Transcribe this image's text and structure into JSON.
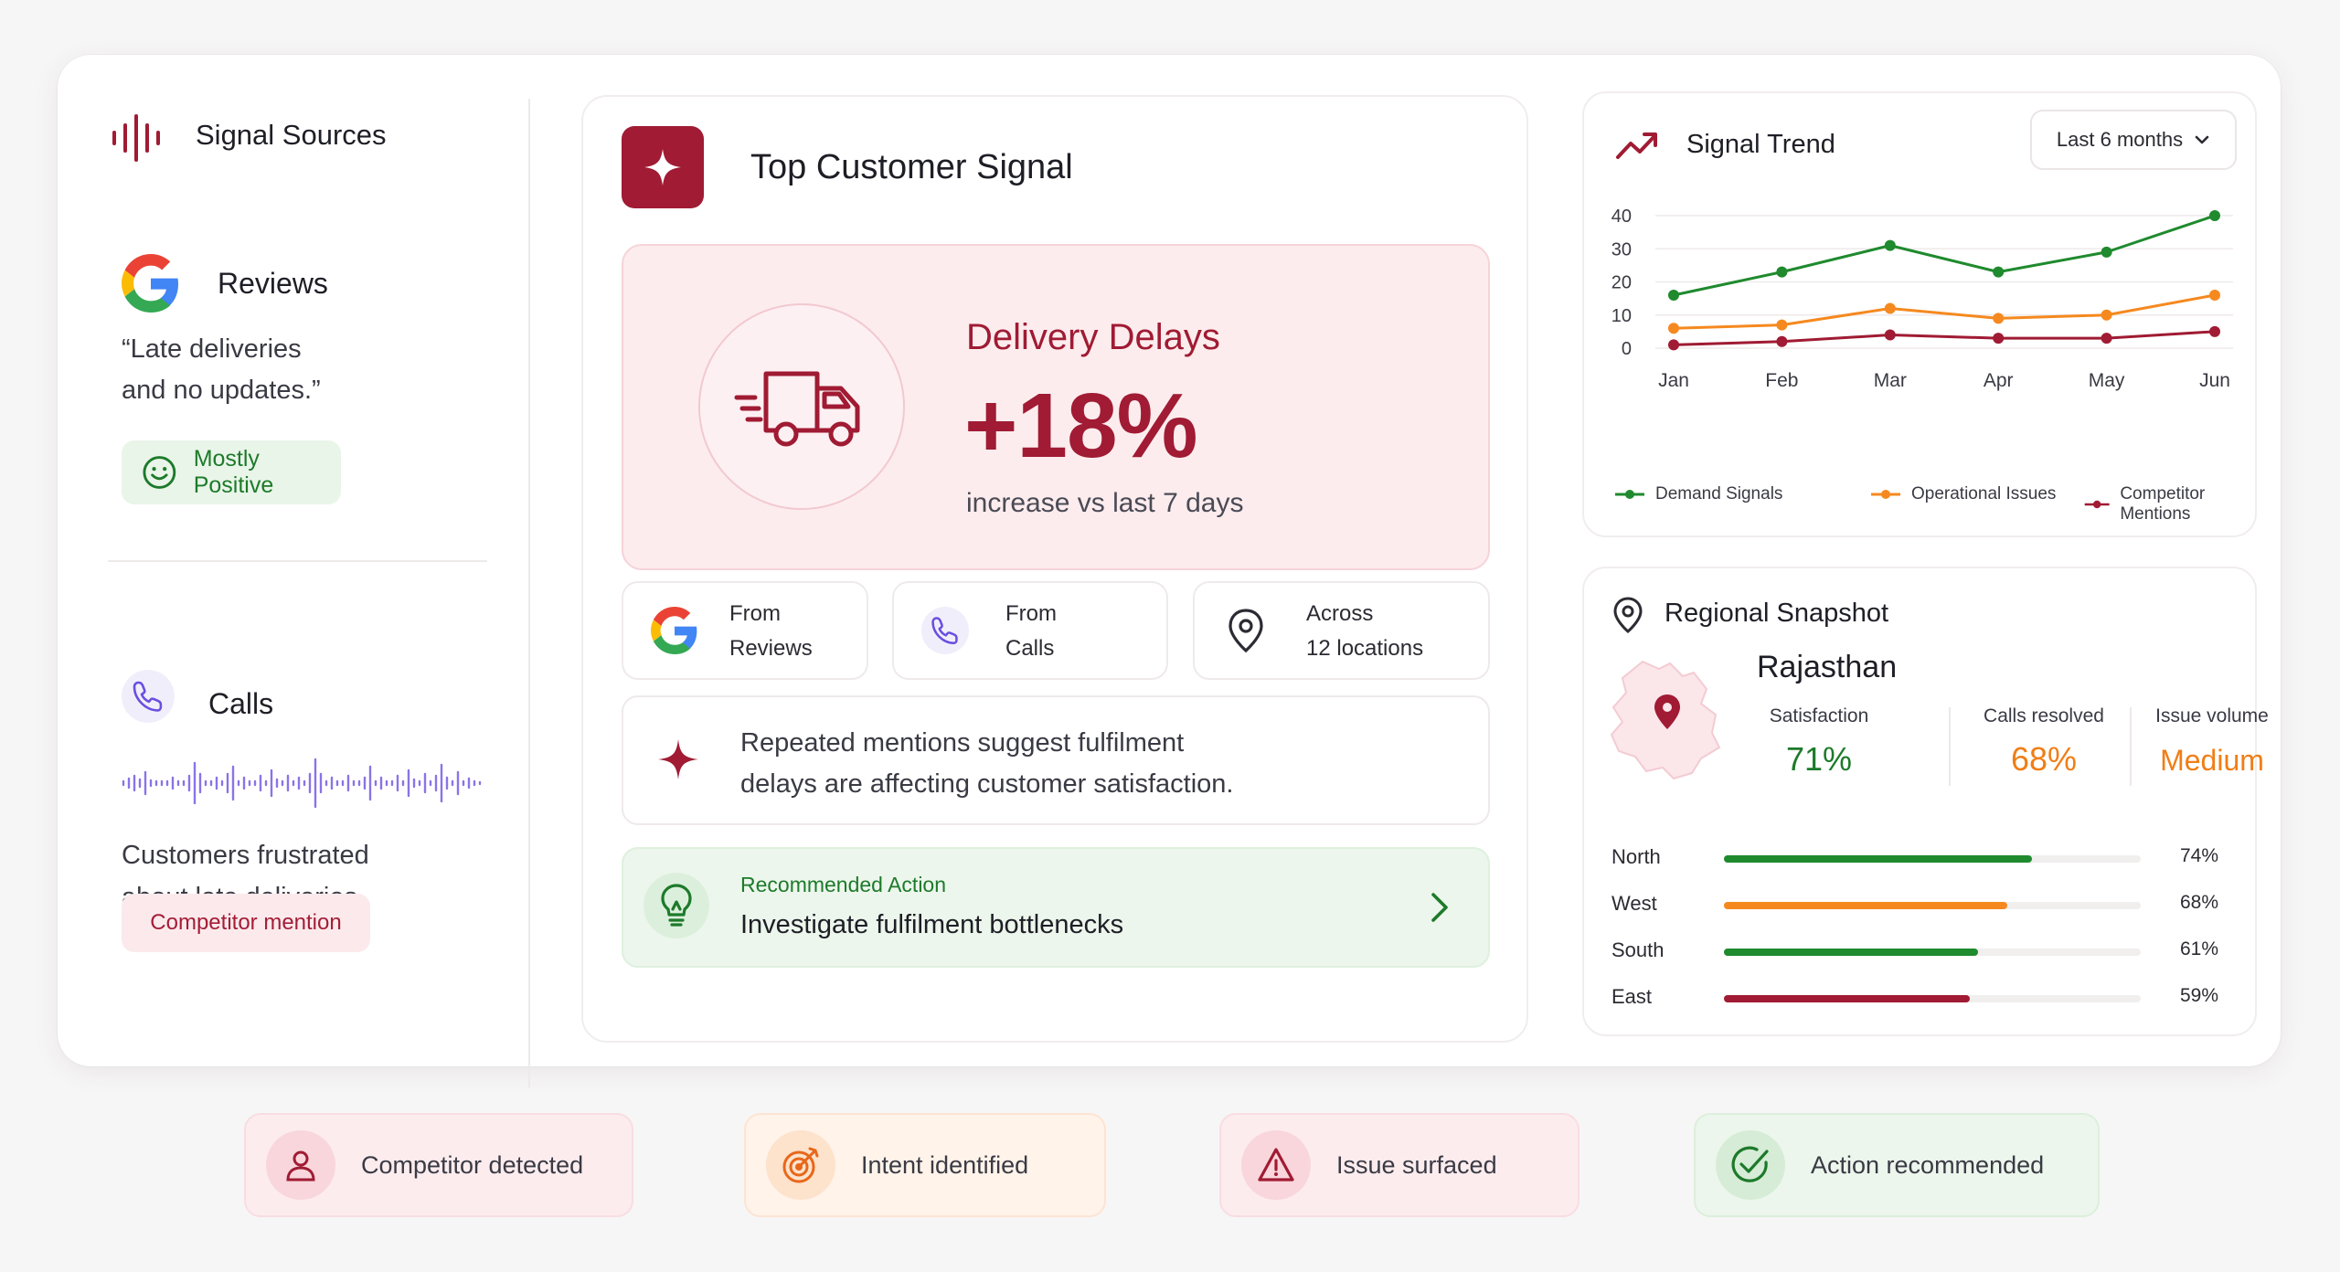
{
  "sources": {
    "title": "Signal Sources",
    "reviews": {
      "title": "Reviews",
      "quote_line1": "“Late deliveries",
      "quote_line2": "and no updates.”",
      "sentiment": "Mostly Positive"
    },
    "calls": {
      "title": "Calls",
      "summary_line1": "Customers frustrated",
      "summary_line2": "about late deliveries.",
      "tag": "Competitor mention"
    }
  },
  "top_signal": {
    "title": "Top Customer Signal",
    "headline": "Delivery Delays",
    "change": "+18%",
    "change_sub": "increase vs last 7 days",
    "sources": [
      {
        "line1": "From",
        "line2": "Reviews",
        "icon": "google-icon"
      },
      {
        "line1": "From",
        "line2": "Calls",
        "icon": "phone-icon"
      },
      {
        "line1": "Across",
        "line2": "12 locations",
        "icon": "location-pin-icon"
      }
    ],
    "insight_line1": "Repeated mentions suggest fulfilment",
    "insight_line2": "delays are affecting customer satisfaction.",
    "action_label": "Recommended Action",
    "action_text": "Investigate fulfilment bottlenecks"
  },
  "trend": {
    "title": "Signal Trend",
    "range": "Last 6 months",
    "chart_data": {
      "type": "line",
      "x": [
        "Jan",
        "Feb",
        "Mar",
        "Apr",
        "May",
        "Jun"
      ],
      "ylim": [
        0,
        40
      ],
      "yticks": [
        0,
        10,
        20,
        30,
        40
      ],
      "grid": true,
      "legend": "bottom",
      "series": [
        {
          "name": "Demand Signals",
          "color": "#1f8a2e",
          "values": [
            16,
            23,
            31,
            23,
            29,
            40
          ]
        },
        {
          "name": "Operational Issues",
          "color": "#f5891f",
          "values": [
            6,
            7,
            12,
            9,
            10,
            16
          ]
        },
        {
          "name": "Competitor Mentions",
          "color": "#a01b33",
          "values": [
            1,
            2,
            4,
            3,
            3,
            5
          ]
        }
      ]
    }
  },
  "regional": {
    "title": "Regional Snapshot",
    "region": "Rajasthan",
    "metrics": [
      {
        "label": "Satisfaction",
        "value": "71%",
        "color": "#1d7a2a"
      },
      {
        "label": "Calls resolved",
        "value": "68%",
        "color": "#f07e16"
      },
      {
        "label": "Issue volume",
        "value": "Medium",
        "color": "#f07e16"
      }
    ],
    "bars": [
      {
        "name": "North",
        "pct": "74%",
        "value": 0.74,
        "color": "#1f8a2e"
      },
      {
        "name": "West",
        "pct": "68%",
        "value": 0.68,
        "color": "#f5891f"
      },
      {
        "name": "South",
        "pct": "61%",
        "value": 0.61,
        "color": "#1f8a2e"
      },
      {
        "name": "East",
        "pct": "59%",
        "value": 0.59,
        "color": "#a01b33"
      }
    ]
  },
  "status_chips": [
    {
      "label": "Competitor detected",
      "icon": "person-icon"
    },
    {
      "label": "Intent identified",
      "icon": "target-icon"
    },
    {
      "label": "Issue surfaced",
      "icon": "warning-icon"
    },
    {
      "label": "Action recommended",
      "icon": "check-circle-icon"
    }
  ],
  "colors": {
    "brand": "#a01b33",
    "positive": "#1d7a2a",
    "warning": "#f07e16",
    "soft_pink": "#fcecee",
    "soft_green": "#ecf6ec"
  }
}
